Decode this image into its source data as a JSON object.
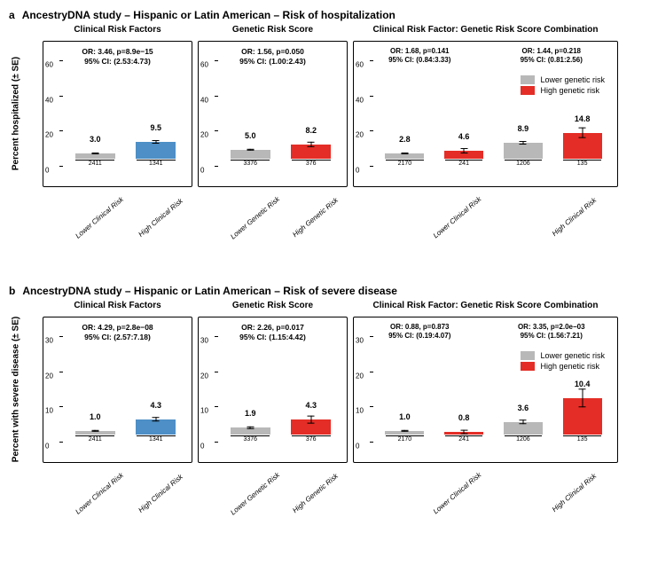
{
  "colors": {
    "grey": "#b8b8b8",
    "blue": "#4d8fc6",
    "red": "#e42d26",
    "black": "#000000",
    "bg": "#ffffff"
  },
  "legend": {
    "low": "Lower genetic risk",
    "high": "High genetic risk"
  },
  "panel_a": {
    "letter": "a",
    "title": "AncestryDNA study – Hispanic or Latin American – Risk of hospitalization",
    "ylabel": "Percent hospitalized (± SE)",
    "ymax": 70,
    "yticks": [
      0,
      20,
      40,
      60
    ],
    "subplots": [
      {
        "title": "Clinical Risk Factors",
        "stats": [
          "OR: 3.46, p=8.9e−15",
          "95% CI: (2.53:4.73)"
        ],
        "bars": [
          {
            "label": "3.0",
            "value": 3.0,
            "n": "2411",
            "se": 0.5,
            "color": "grey",
            "xl": "Lower Clinical Risk"
          },
          {
            "label": "9.5",
            "value": 9.5,
            "n": "1341",
            "se": 1.0,
            "color": "blue",
            "xl": "High Clinical Risk"
          }
        ]
      },
      {
        "title": "Genetic Risk Score",
        "stats": [
          "OR: 1.56, p=0.050",
          "95% CI: (1.00:2.43)"
        ],
        "bars": [
          {
            "label": "5.0",
            "value": 5.0,
            "n": "3376",
            "se": 0.6,
            "color": "grey",
            "xl": "Lower Genetic Risk"
          },
          {
            "label": "8.2",
            "value": 8.2,
            "n": "376",
            "se": 1.6,
            "color": "red",
            "xl": "High Genetic Risk"
          }
        ]
      },
      {
        "title": "Clinical Risk Factor: Genetic Risk Score Combination",
        "stats_pair": [
          [
            "OR: 1.68, p=0.141",
            "95% CI: (0.84:3.33)"
          ],
          [
            "OR: 1.44, p=0.218",
            "95% CI: (0.81:2.56)"
          ]
        ],
        "legend": true,
        "groups": [
          {
            "xl": "Lower Clinical Risk",
            "bars": [
              {
                "label": "2.8",
                "value": 2.8,
                "n": "2170",
                "se": 0.5,
                "color": "grey"
              },
              {
                "label": "4.6",
                "value": 4.6,
                "n": "241",
                "se": 1.5,
                "color": "red"
              }
            ]
          },
          {
            "xl": "High Clinical Risk",
            "bars": [
              {
                "label": "8.9",
                "value": 8.9,
                "n": "1206",
                "se": 1.0,
                "color": "grey"
              },
              {
                "label": "14.8",
                "value": 14.8,
                "n": "135",
                "se": 3.2,
                "color": "red"
              }
            ]
          }
        ]
      }
    ]
  },
  "panel_b": {
    "letter": "b",
    "title": "AncestryDNA study – Hispanic or Latin American – Risk of severe disease",
    "ylabel": "Percent with severe disease (± SE)",
    "ymax": 35,
    "yticks": [
      0,
      10,
      20,
      30
    ],
    "subplots": [
      {
        "title": "Clinical Risk Factors",
        "stats": [
          "OR: 4.29, p=2.8e−08",
          "95% CI: (2.57:7.18)"
        ],
        "bars": [
          {
            "label": "1.0",
            "value": 1.0,
            "n": "2411",
            "se": 0.3,
            "color": "grey",
            "xl": "Lower Clinical Risk"
          },
          {
            "label": "4.3",
            "value": 4.3,
            "n": "1341",
            "se": 0.7,
            "color": "blue",
            "xl": "High Clinical Risk"
          }
        ]
      },
      {
        "title": "Genetic Risk Score",
        "stats": [
          "OR: 2.26, p=0.017",
          "95% CI: (1.15:4.42)"
        ],
        "bars": [
          {
            "label": "1.9",
            "value": 1.9,
            "n": "3376",
            "se": 0.3,
            "color": "grey",
            "xl": "Lower Genetic Risk"
          },
          {
            "label": "4.3",
            "value": 4.3,
            "n": "376",
            "se": 1.1,
            "color": "red",
            "xl": "High Genetic Risk"
          }
        ]
      },
      {
        "title": "Clinical Risk Factor: Genetic Risk Score Combination",
        "stats_pair": [
          [
            "OR: 0.88, p=0.873",
            "95% CI: (0.19:4.07)"
          ],
          [
            "OR: 3.35, p=2.0e−03",
            "95% CI: (1.56:7.21)"
          ]
        ],
        "legend": true,
        "groups": [
          {
            "xl": "Lower Clinical Risk",
            "bars": [
              {
                "label": "1.0",
                "value": 1.0,
                "n": "2170",
                "se": 0.3,
                "color": "grey"
              },
              {
                "label": "0.8",
                "value": 0.8,
                "n": "241",
                "se": 0.6,
                "color": "red"
              }
            ]
          },
          {
            "xl": "High Clinical Risk",
            "bars": [
              {
                "label": "3.6",
                "value": 3.6,
                "n": "1206",
                "se": 0.7,
                "color": "grey"
              },
              {
                "label": "10.4",
                "value": 10.4,
                "n": "135",
                "se": 2.7,
                "color": "red"
              }
            ]
          }
        ]
      }
    ]
  }
}
